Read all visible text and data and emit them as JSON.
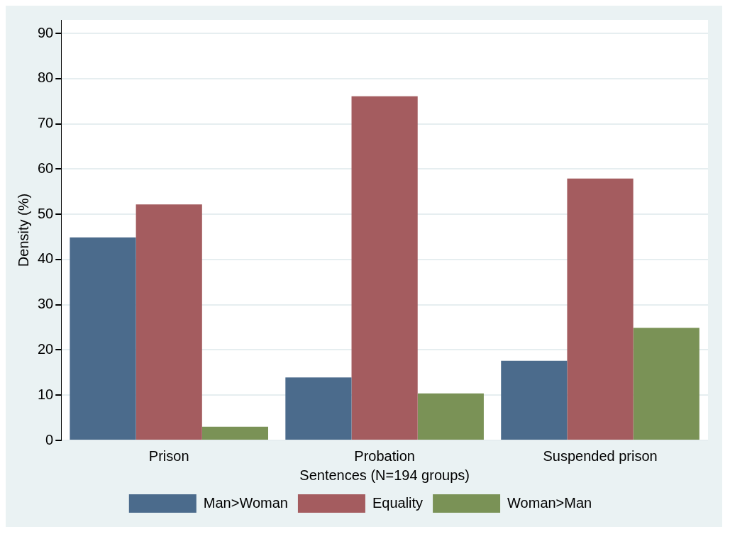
{
  "chart_data": {
    "type": "bar",
    "xlabel": "Sentences (N=194 groups)",
    "ylabel": "Density (%)",
    "categories": [
      "Prison",
      "Probation",
      "Suspended prison"
    ],
    "series": [
      {
        "name": "Man>Woman",
        "color": "#4b6b8c",
        "values": [
          44.9,
          13.9,
          17.6
        ]
      },
      {
        "name": "Equality",
        "color": "#a45c5f",
        "values": [
          52.2,
          76.1,
          57.9
        ]
      },
      {
        "name": "Woman>Man",
        "color": "#7a9256",
        "values": [
          3,
          10.4,
          24.9
        ]
      }
    ],
    "ylim": [
      0,
      93
    ],
    "yticks": [
      0,
      10,
      20,
      30,
      40,
      50,
      60,
      70,
      80,
      90
    ],
    "grid": "y",
    "legend": "bottom"
  }
}
